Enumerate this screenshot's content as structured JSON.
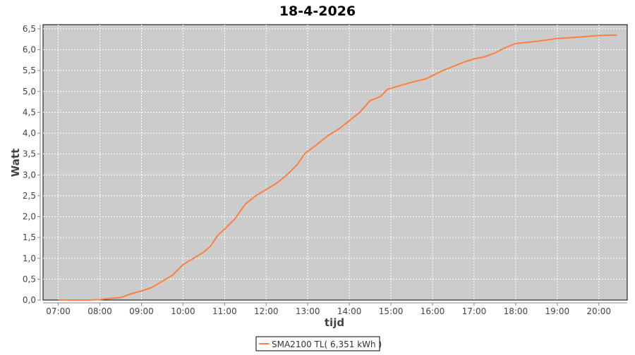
{
  "chart_data": {
    "type": "line",
    "title": "18-4-2026",
    "xlabel": "tijd",
    "ylabel": "Watt",
    "xlim": [
      "06:38",
      "20:41"
    ],
    "ylim": [
      0,
      6.6
    ],
    "x_ticks": [
      "07:00",
      "08:00",
      "09:00",
      "10:00",
      "11:00",
      "12:00",
      "13:00",
      "14:00",
      "15:00",
      "16:00",
      "17:00",
      "18:00",
      "19:00",
      "20:00"
    ],
    "y_ticks": [
      "0,0",
      "0,5",
      "1,0",
      "1,5",
      "2,0",
      "2,5",
      "3,0",
      "3,5",
      "4,0",
      "4,5",
      "5,0",
      "5,5",
      "6,0",
      "6,5"
    ],
    "grid": true,
    "legend_placement": "bottom",
    "colors": {
      "series": "#ff7f3f",
      "plot_bg": "#cccccc",
      "grid": "#ffffff"
    },
    "series": [
      {
        "name": "SMA2100 TL( 6,351 kWh )",
        "x": [
          "07:00",
          "07:45",
          "08:00",
          "08:15",
          "08:30",
          "08:45",
          "09:00",
          "09:15",
          "09:30",
          "09:45",
          "10:00",
          "10:15",
          "10:30",
          "10:40",
          "10:50",
          "11:00",
          "11:15",
          "11:30",
          "11:45",
          "12:00",
          "12:15",
          "12:30",
          "12:45",
          "12:55",
          "13:15",
          "13:30",
          "13:45",
          "14:00",
          "14:15",
          "14:30",
          "14:45",
          "14:55",
          "15:15",
          "15:30",
          "15:50",
          "16:00",
          "16:15",
          "16:30",
          "16:45",
          "17:00",
          "17:15",
          "17:30",
          "17:45",
          "18:00",
          "18:30",
          "19:00",
          "19:30",
          "20:00",
          "20:26"
        ],
        "values": [
          0,
          0,
          0.01,
          0.04,
          0.06,
          0.15,
          0.22,
          0.3,
          0.45,
          0.6,
          0.85,
          1.0,
          1.15,
          1.3,
          1.55,
          1.7,
          1.95,
          2.3,
          2.5,
          2.65,
          2.8,
          3.0,
          3.25,
          3.5,
          3.75,
          3.95,
          4.1,
          4.3,
          4.5,
          4.78,
          4.88,
          5.05,
          5.15,
          5.22,
          5.3,
          5.38,
          5.5,
          5.6,
          5.7,
          5.78,
          5.83,
          5.92,
          6.05,
          6.15,
          6.2,
          6.27,
          6.3,
          6.34,
          6.35
        ]
      }
    ]
  }
}
